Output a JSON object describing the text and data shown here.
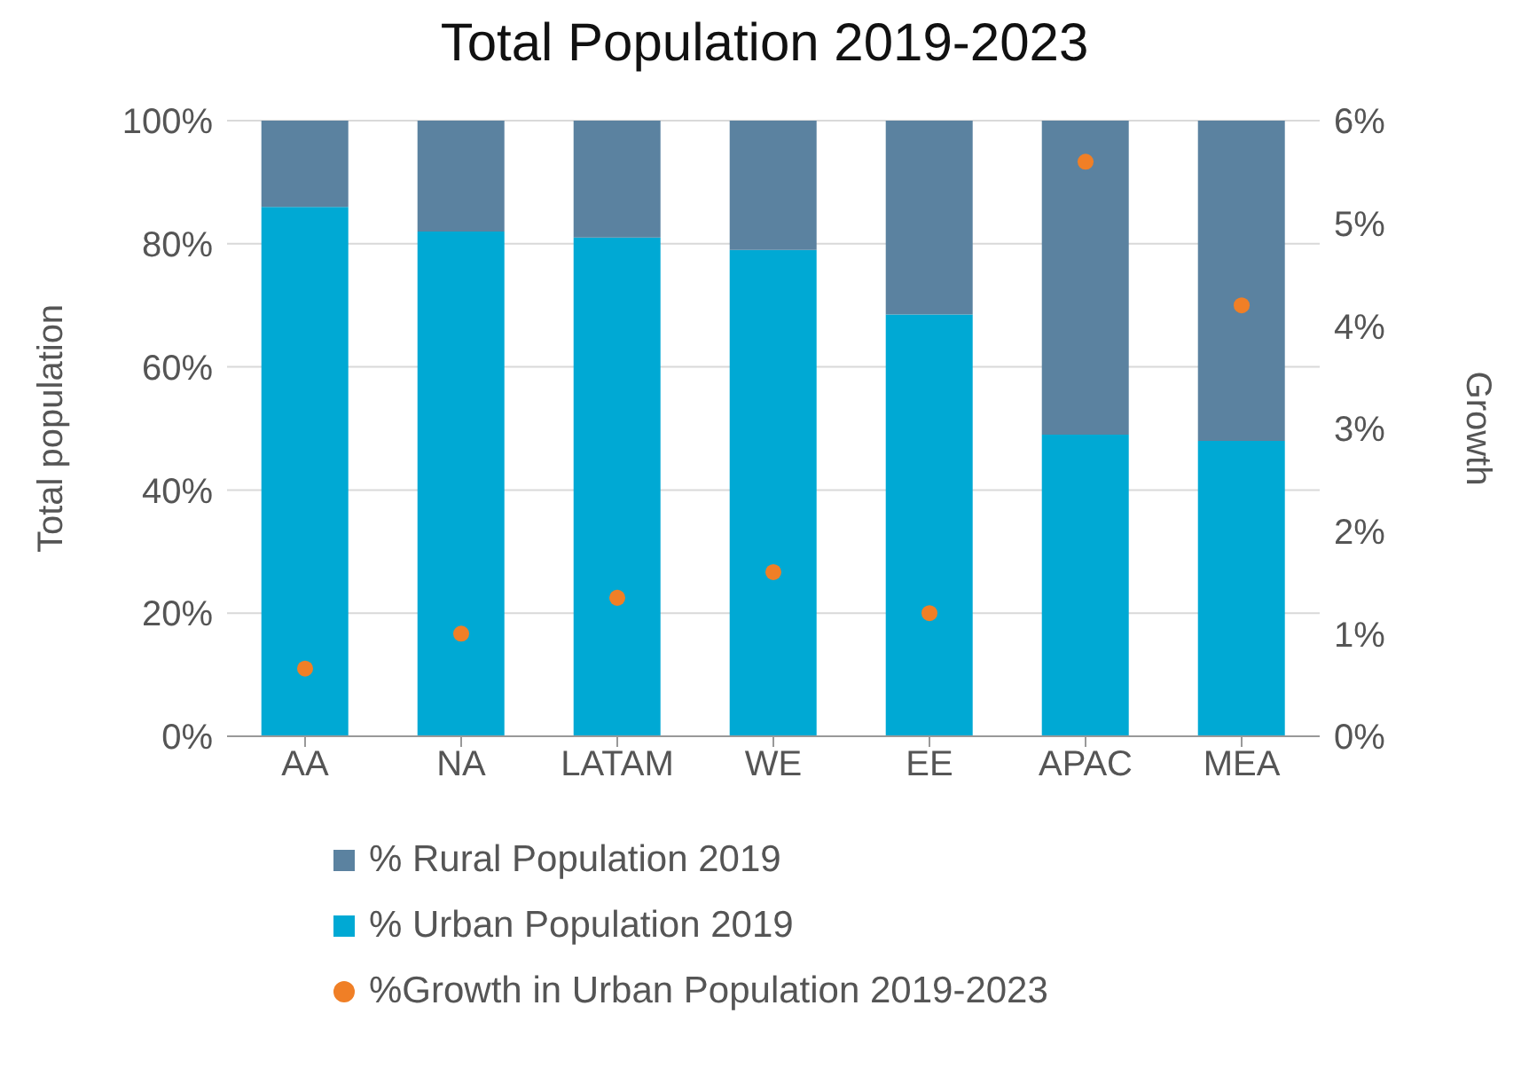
{
  "chart_data": {
    "type": "bar",
    "title": "Total Population 2019-2023",
    "ylabel": "Total population",
    "y2label": "Growth",
    "categories": [
      "AA",
      "NA",
      "LATAM",
      "WE",
      "EE",
      "APAC",
      "MEA"
    ],
    "stacked": true,
    "series": [
      {
        "name": "% Urban Population 2019",
        "color": "#00a9d4",
        "values": [
          86,
          82,
          81,
          79,
          68.5,
          49,
          48
        ]
      },
      {
        "name": "% Rural Population 2019",
        "color": "#5b82a0",
        "values": [
          14,
          18,
          19,
          21,
          31.5,
          51,
          52
        ]
      },
      {
        "name": "%Growth in Urban Population 2019-2023",
        "type": "scatter",
        "axis": "y2",
        "color": "#f07f26",
        "marker": "circle",
        "values": [
          0.66,
          1.0,
          1.35,
          1.6,
          1.2,
          5.6,
          4.2
        ]
      }
    ],
    "ylim": [
      0,
      100
    ],
    "yticks": [
      {
        "value": 0,
        "label": "0%"
      },
      {
        "value": 20,
        "label": "20%"
      },
      {
        "value": 40,
        "label": "40%"
      },
      {
        "value": 60,
        "label": "60%"
      },
      {
        "value": 80,
        "label": "80%"
      },
      {
        "value": 100,
        "label": "100%"
      }
    ],
    "y2lim": [
      0,
      6
    ],
    "y2ticks": [
      {
        "value": 0,
        "label": "0%"
      },
      {
        "value": 1,
        "label": "1%"
      },
      {
        "value": 2,
        "label": "2%"
      },
      {
        "value": 3,
        "label": "3%"
      },
      {
        "value": 4,
        "label": "4%"
      },
      {
        "value": 5,
        "label": "5%"
      },
      {
        "value": 6,
        "label": "6%"
      }
    ],
    "grid": "y",
    "legend": "bottom"
  }
}
